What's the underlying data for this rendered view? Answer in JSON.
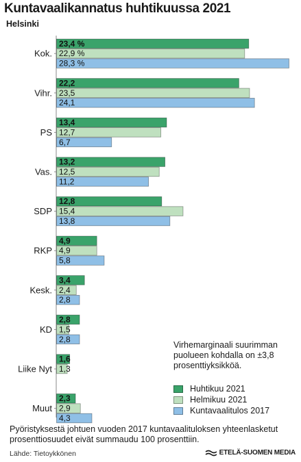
{
  "header": {
    "title": "Kuntavaalikannatus huhtikuussa 2021",
    "subtitle": "Helsinki"
  },
  "note": "Virhemarginaali suurimman puolueen kohdalla on ±3,8 prosenttiyksikköä.",
  "footnote": "Pyöristyksestä johtuen vuoden 2017 kuntavaalituloksen yhteenlasketut prosenttiosuudet eivät summaudu 100 prosenttiin.",
  "source": "Lähde: Tietoykkönen",
  "brand": "ETELÄ-SUOMEN MEDIA",
  "legend": [
    {
      "label": "Huhtikuu 2021",
      "color": "#3aa36a"
    },
    {
      "label": "Helmikuu 2021",
      "color": "#bfe0bf"
    },
    {
      "label": "Kuntavaalitulos 2017",
      "color": "#8fbfe6"
    }
  ],
  "chart_data": {
    "type": "bar",
    "orientation": "horizontal",
    "categories": [
      "Kok.",
      "Vihr.",
      "PS",
      "Vas.",
      "SDP",
      "RKP",
      "Kesk.",
      "KD",
      "Liike Nyt",
      "Muut"
    ],
    "series": [
      {
        "name": "Huhtikuu 2021",
        "color": "#3aa36a",
        "values": [
          23.4,
          22.2,
          13.4,
          13.2,
          12.8,
          4.9,
          3.4,
          2.8,
          1.6,
          2.3
        ],
        "labels": [
          "23,4 %",
          "22,2",
          "13,4",
          "13,2",
          "12,8",
          "4,9",
          "3,4",
          "2,8",
          "1,6",
          "2,3"
        ]
      },
      {
        "name": "Helmikuu 2021",
        "color": "#bfe0bf",
        "values": [
          22.9,
          23.5,
          12.7,
          12.5,
          15.4,
          4.9,
          2.4,
          1.5,
          1.3,
          2.9
        ],
        "labels": [
          "22,9 %",
          "23,5",
          "12,7",
          "12,5",
          "15,4",
          "4,9",
          "2,4",
          "1,5",
          "1,3",
          "2,9"
        ]
      },
      {
        "name": "Kuntavaalitulos 2017",
        "color": "#8fbfe6",
        "values": [
          28.3,
          24.1,
          6.7,
          11.2,
          13.8,
          5.8,
          2.8,
          2.8,
          null,
          4.3
        ],
        "labels": [
          "28,3 %",
          "24,1",
          "6,7",
          "11,2",
          "13,8",
          "5,8",
          "2,8",
          "2,8",
          "",
          "4,3"
        ]
      }
    ],
    "xlim": [
      0,
      28.3
    ],
    "grid": false,
    "legend_position": "bottom-right"
  }
}
